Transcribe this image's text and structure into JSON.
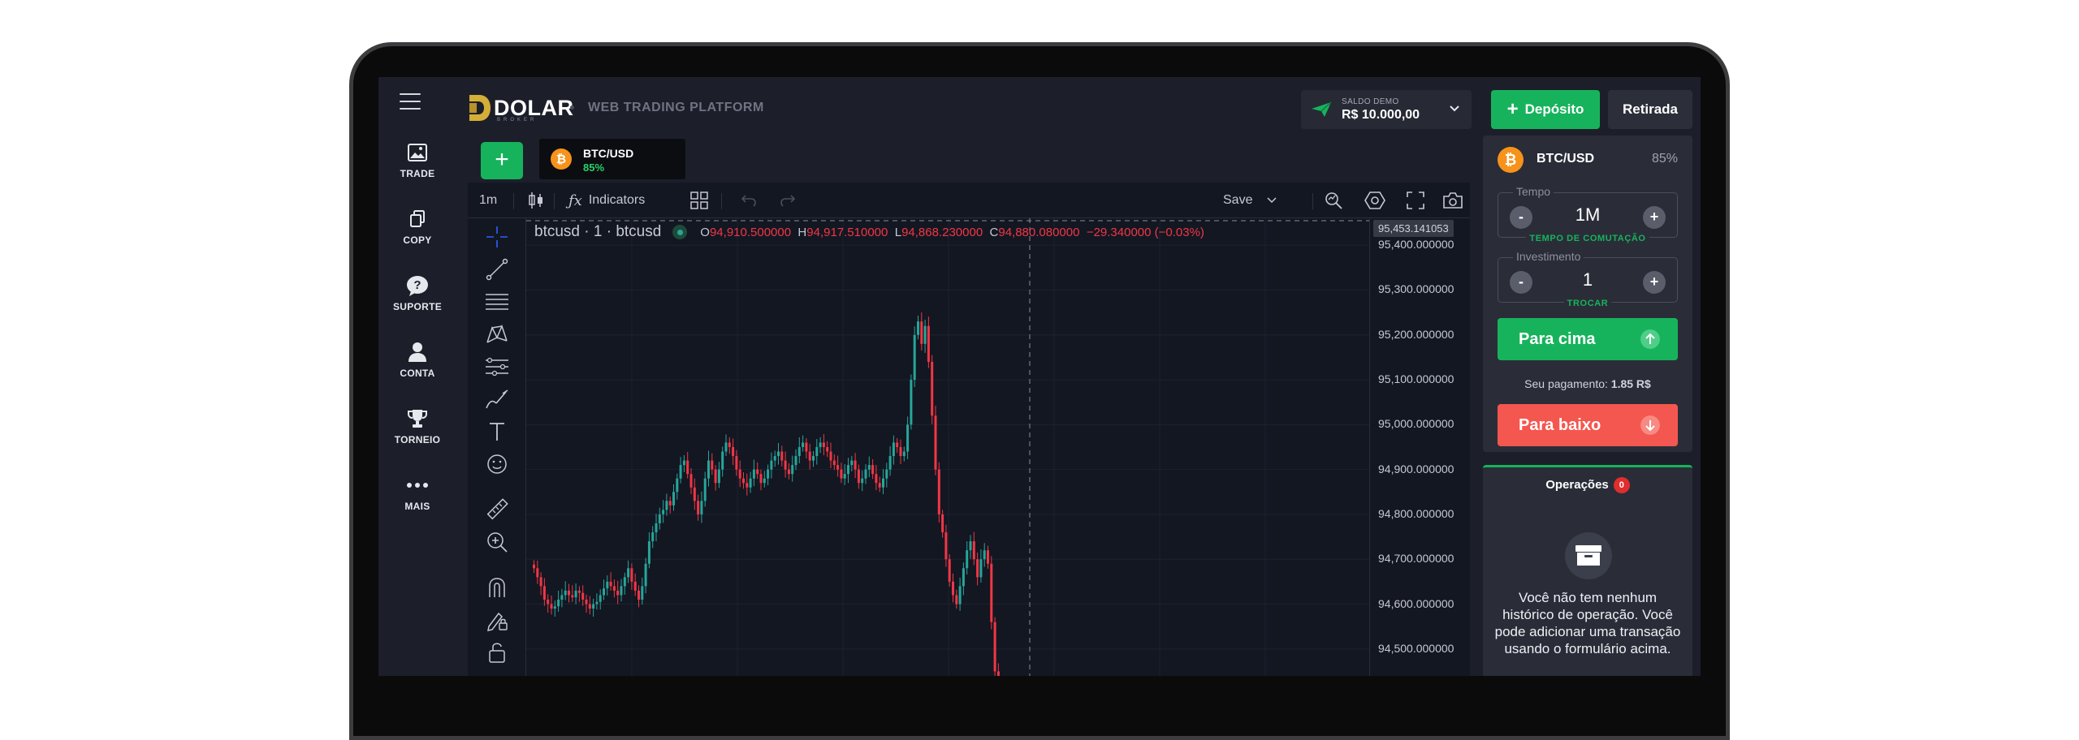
{
  "nav": {
    "items": [
      {
        "label": "TRADE",
        "icon": "image-icon"
      },
      {
        "label": "COPY",
        "icon": "copy-icon"
      },
      {
        "label": "SUPORTE",
        "icon": "help-icon"
      },
      {
        "label": "CONTA",
        "icon": "user-icon"
      },
      {
        "label": "TORNEIO",
        "icon": "trophy-icon"
      },
      {
        "label": "MAIS",
        "icon": "more-icon"
      }
    ]
  },
  "header": {
    "logo_text": "DOLAR",
    "logo_sub": "BROKER",
    "tagline": "WEB TRADING PLATFORM",
    "balance_label": "SALDO DEMO",
    "balance_value": "R$ 10.000,00",
    "deposit_label": "Depósito",
    "withdraw_label": "Retirada"
  },
  "chart": {
    "asset_tab_name": "BTC/USD",
    "asset_tab_pct": "85%",
    "interval": "1m",
    "indicators_label": "Indicators",
    "save_label": "Save",
    "symbol_legend": "btcusd · 1 · btcusd",
    "ohlc": {
      "o_key": "O",
      "o": "94,910.500000",
      "h_key": "H",
      "h": "94,917.510000",
      "l_key": "L",
      "l": "94,868.230000",
      "c_key": "C",
      "c": "94,880.080000",
      "change": "−29.340000 (−0.03%)"
    },
    "current_price_tag": "95,453.141053",
    "up_color": "#26a69a",
    "down_color": "#f23645"
  },
  "chart_data": {
    "type": "candlestick",
    "symbol": "btcusd",
    "interval": "1",
    "y_ticks": [
      "95,400.000000",
      "95,300.000000",
      "95,200.000000",
      "95,100.000000",
      "95,000.000000",
      "94,900.000000",
      "94,800.000000",
      "94,700.000000",
      "94,600.000000",
      "94,500.000000"
    ],
    "ylim": [
      94440,
      95460
    ],
    "close": [
      94680,
      94660,
      94640,
      94610,
      94600,
      94590,
      94595,
      94610,
      94620,
      94630,
      94620,
      94615,
      94630,
      94625,
      94610,
      94600,
      94590,
      94600,
      94605,
      94620,
      94635,
      94650,
      94640,
      94630,
      94620,
      94640,
      94660,
      94680,
      94650,
      94630,
      94610,
      94640,
      94690,
      94740,
      94760,
      94780,
      94800,
      94810,
      94830,
      94820,
      94850,
      94880,
      94910,
      94920,
      94890,
      94860,
      94830,
      94800,
      94830,
      94880,
      94920,
      94900,
      94870,
      94900,
      94940,
      94960,
      94950,
      94930,
      94900,
      94880,
      94870,
      94860,
      94880,
      94900,
      94890,
      94870,
      94880,
      94900,
      94920,
      94930,
      94940,
      94920,
      94900,
      94890,
      94910,
      94930,
      94950,
      94960,
      94940,
      94920,
      94930,
      94950,
      94960,
      94950,
      94940,
      94920,
      94910,
      94900,
      94880,
      94890,
      94910,
      94920,
      94900,
      94870,
      94880,
      94900,
      94910,
      94890,
      94870,
      94860,
      94880,
      94900,
      94930,
      94960,
      94950,
      94930,
      94940,
      95000,
      95100,
      95200,
      95230,
      95180,
      95220,
      95140,
      95020,
      94900,
      94800,
      94760,
      94700,
      94650,
      94620,
      94600,
      94640,
      94680,
      94720,
      94740,
      94700,
      94660,
      94700,
      94720,
      94690,
      94560,
      94450,
      94380
    ]
  },
  "trade": {
    "pair": "BTC/USD",
    "pct": "85%",
    "time_label": "Tempo",
    "time_value": "1M",
    "time_sub": "TEMPO DE COMUTAÇÃO",
    "invest_label": "Investimento",
    "invest_value": "1",
    "invest_sub": "TROCAR",
    "minus": "-",
    "plus": "+",
    "up_label": "Para cima",
    "payout_label": "Seu pagamento:",
    "payout_value": "1.85 R$",
    "down_label": "Para baixo"
  },
  "ops": {
    "title": "Operações",
    "count": "0",
    "empty_msg": "Você não tem nenhum histórico de operação. Você pode adicionar uma transação usando o formulário acima."
  }
}
